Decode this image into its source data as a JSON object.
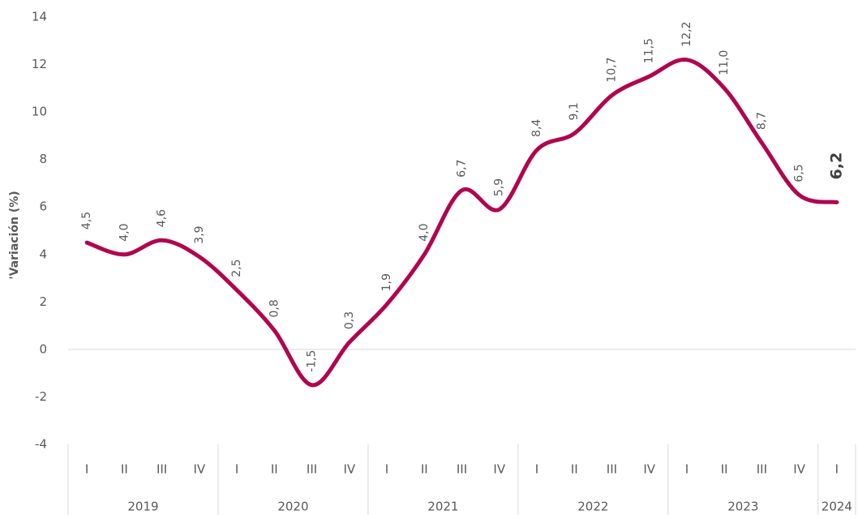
{
  "chart_data": {
    "type": "line",
    "y_label": "'Variación (%)",
    "categories": [
      "I",
      "II",
      "III",
      "IV",
      "I",
      "II",
      "III",
      "IV",
      "I",
      "II",
      "III",
      "IV",
      "I",
      "II",
      "III",
      "IV",
      "I",
      "II",
      "III",
      "IV",
      "I"
    ],
    "years": [
      "2019",
      "2020",
      "2021",
      "2022",
      "2023",
      "2024"
    ],
    "series": [
      {
        "name": "Variación",
        "color": "#b0064f",
        "values": [
          4.5,
          4.0,
          4.6,
          3.9,
          2.5,
          0.8,
          -1.5,
          0.3,
          1.9,
          4.0,
          6.7,
          5.9,
          8.4,
          9.1,
          10.7,
          11.5,
          12.2,
          11.0,
          8.7,
          6.5,
          6.2
        ],
        "value_labels": [
          "4,5",
          "4,0",
          "4,6",
          "3,9",
          "2,5",
          "0,8",
          "-1,5",
          "0,3",
          "1,9",
          "4,0",
          "6,7",
          "5,9",
          "8,4",
          "9,1",
          "10,7",
          "11,5",
          "12,2",
          "11,0",
          "8,7",
          "6,5",
          "6,2"
        ]
      }
    ],
    "ylim": [
      -4,
      14
    ],
    "yticks": [
      -4,
      -2,
      0,
      2,
      4,
      6,
      8,
      10,
      12,
      14
    ],
    "grid": false
  }
}
